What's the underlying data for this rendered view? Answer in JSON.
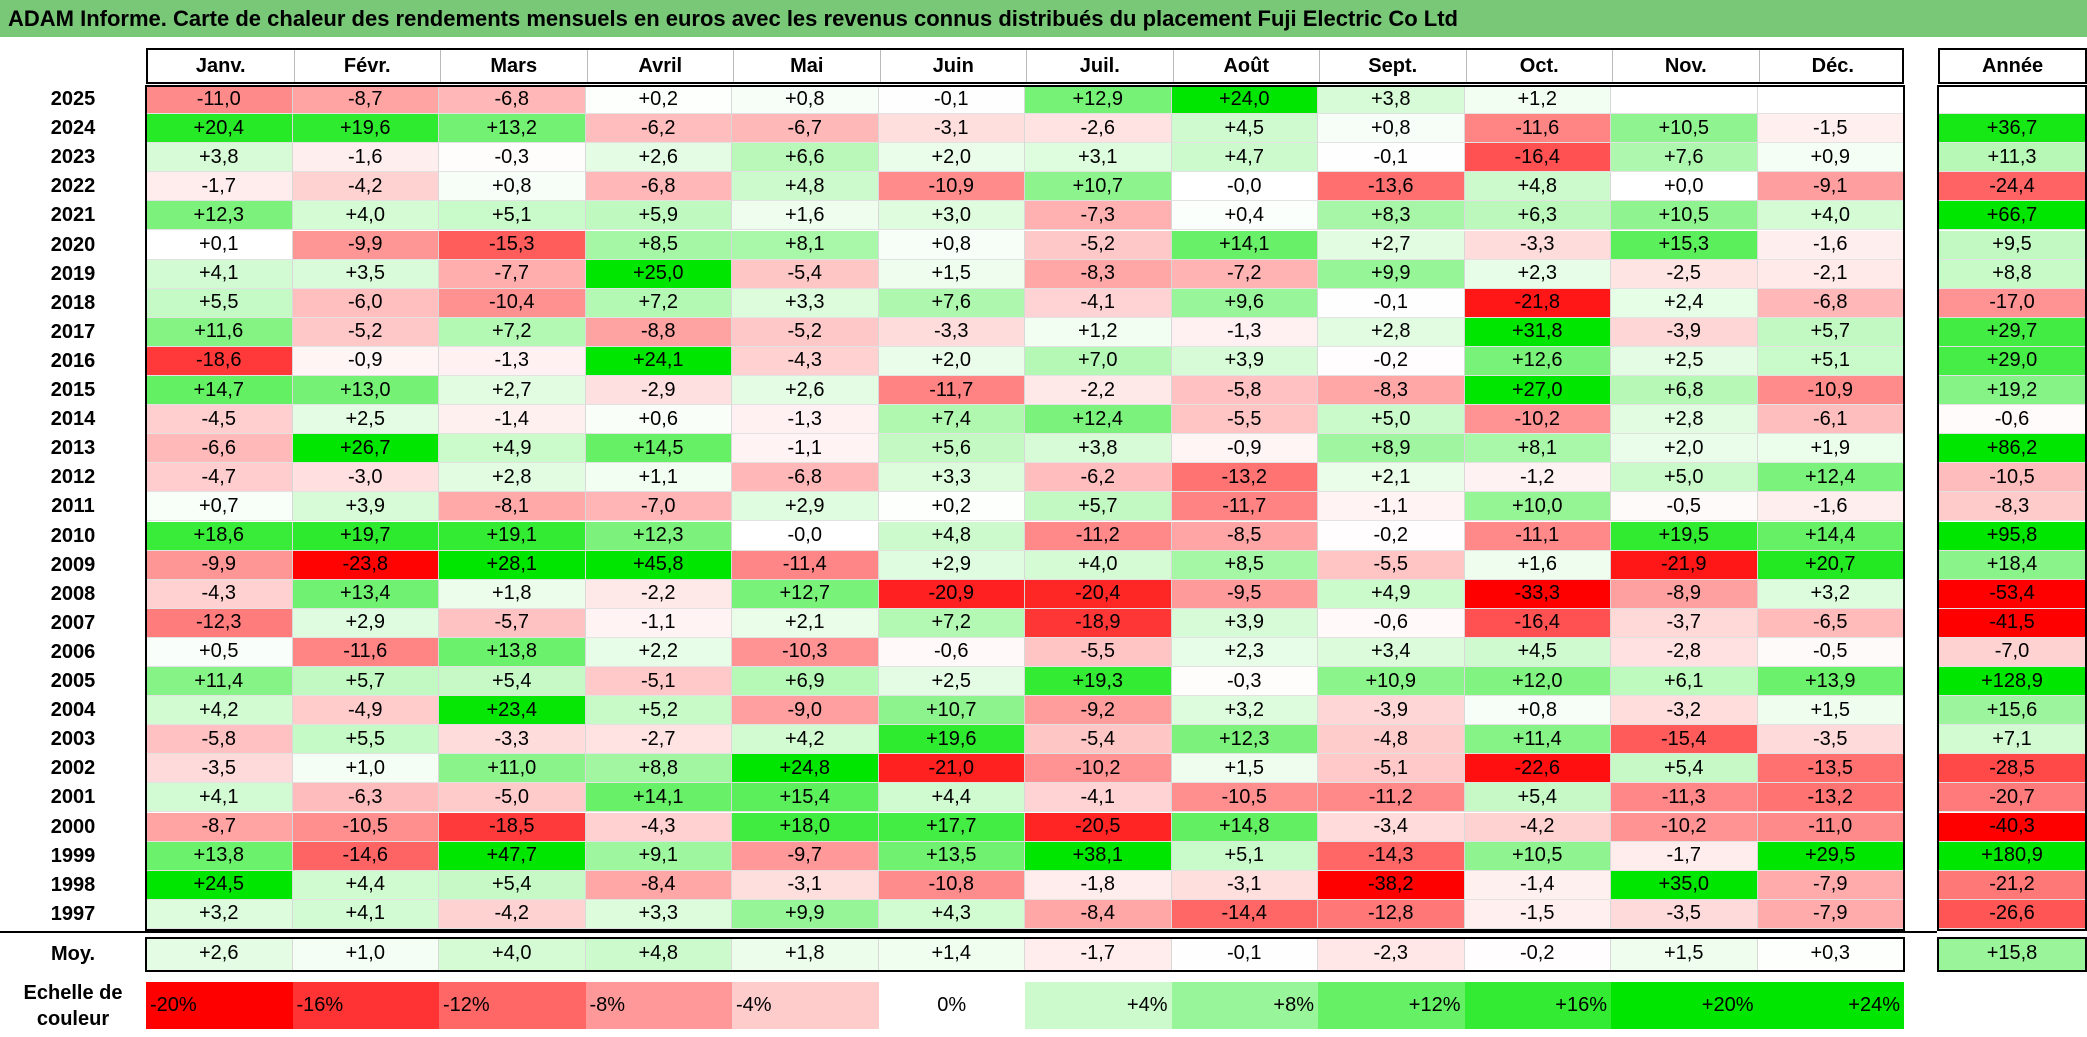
{
  "title": "ADAM Informe. Carte de chaleur des rendements mensuels en euros avec les revenus connus distribués du placement Fuji Electric Co Ltd",
  "chart_data": {
    "type": "heatmap",
    "title": "ADAM Informe. Carte de chaleur des rendements mensuels en euros avec les revenus connus distribués du placement Fuji Electric Co Ltd",
    "columns": [
      "Janv.",
      "Févr.",
      "Mars",
      "Avril",
      "Mai",
      "Juin",
      "Juil.",
      "Août",
      "Sept.",
      "Oct.",
      "Nov.",
      "Déc."
    ],
    "year_header": "Année",
    "rows": [
      {
        "year": "2025",
        "values": [
          "-11,0",
          "-8,7",
          "-6,8",
          "+0,2",
          "+0,8",
          "-0,1",
          "+12,9",
          "+24,0",
          "+3,8",
          "+1,2",
          "",
          ""
        ],
        "annual": ""
      },
      {
        "year": "2024",
        "values": [
          "+20,4",
          "+19,6",
          "+13,2",
          "-6,2",
          "-6,7",
          "-3,1",
          "-2,6",
          "+4,5",
          "+0,8",
          "-11,6",
          "+10,5",
          "-1,5"
        ],
        "annual": "+36,7"
      },
      {
        "year": "2023",
        "values": [
          "+3,8",
          "-1,6",
          "-0,3",
          "+2,6",
          "+6,6",
          "+2,0",
          "+3,1",
          "+4,7",
          "-0,1",
          "-16,4",
          "+7,6",
          "+0,9"
        ],
        "annual": "+11,3"
      },
      {
        "year": "2022",
        "values": [
          "-1,7",
          "-4,2",
          "+0,8",
          "-6,8",
          "+4,8",
          "-10,9",
          "+10,7",
          "-0,0",
          "-13,6",
          "+4,8",
          "+0,0",
          "-9,1"
        ],
        "annual": "-24,4"
      },
      {
        "year": "2021",
        "values": [
          "+12,3",
          "+4,0",
          "+5,1",
          "+5,9",
          "+1,6",
          "+3,0",
          "-7,3",
          "+0,4",
          "+8,3",
          "+6,3",
          "+10,5",
          "+4,0"
        ],
        "annual": "+66,7"
      },
      {
        "year": "2020",
        "values": [
          "+0,1",
          "-9,9",
          "-15,3",
          "+8,5",
          "+8,1",
          "+0,8",
          "-5,2",
          "+14,1",
          "+2,7",
          "-3,3",
          "+15,3",
          "-1,6"
        ],
        "annual": "+9,5"
      },
      {
        "year": "2019",
        "values": [
          "+4,1",
          "+3,5",
          "-7,7",
          "+25,0",
          "-5,4",
          "+1,5",
          "-8,3",
          "-7,2",
          "+9,9",
          "+2,3",
          "-2,5",
          "-2,1"
        ],
        "annual": "+8,8"
      },
      {
        "year": "2018",
        "values": [
          "+5,5",
          "-6,0",
          "-10,4",
          "+7,2",
          "+3,3",
          "+7,6",
          "-4,1",
          "+9,6",
          "-0,1",
          "-21,8",
          "+2,4",
          "-6,8"
        ],
        "annual": "-17,0"
      },
      {
        "year": "2017",
        "values": [
          "+11,6",
          "-5,2",
          "+7,2",
          "-8,8",
          "-5,2",
          "-3,3",
          "+1,2",
          "-1,3",
          "+2,8",
          "+31,8",
          "-3,9",
          "+5,7"
        ],
        "annual": "+29,7"
      },
      {
        "year": "2016",
        "values": [
          "-18,6",
          "-0,9",
          "-1,3",
          "+24,1",
          "-4,3",
          "+2,0",
          "+7,0",
          "+3,9",
          "-0,2",
          "+12,6",
          "+2,5",
          "+5,1"
        ],
        "annual": "+29,0"
      },
      {
        "year": "2015",
        "values": [
          "+14,7",
          "+13,0",
          "+2,7",
          "-2,9",
          "+2,6",
          "-11,7",
          "-2,2",
          "-5,8",
          "-8,3",
          "+27,0",
          "+6,8",
          "-10,9"
        ],
        "annual": "+19,2"
      },
      {
        "year": "2014",
        "values": [
          "-4,5",
          "+2,5",
          "-1,4",
          "+0,6",
          "-1,3",
          "+7,4",
          "+12,4",
          "-5,5",
          "+5,0",
          "-10,2",
          "+2,8",
          "-6,1"
        ],
        "annual": "-0,6"
      },
      {
        "year": "2013",
        "values": [
          "-6,6",
          "+26,7",
          "+4,9",
          "+14,5",
          "-1,1",
          "+5,6",
          "+3,8",
          "-0,9",
          "+8,9",
          "+8,1",
          "+2,0",
          "+1,9"
        ],
        "annual": "+86,2"
      },
      {
        "year": "2012",
        "values": [
          "-4,7",
          "-3,0",
          "+2,8",
          "+1,1",
          "-6,8",
          "+3,3",
          "-6,2",
          "-13,2",
          "+2,1",
          "-1,2",
          "+5,0",
          "+12,4"
        ],
        "annual": "-10,5"
      },
      {
        "year": "2011",
        "values": [
          "+0,7",
          "+3,9",
          "-8,1",
          "-7,0",
          "+2,9",
          "+0,2",
          "+5,7",
          "-11,7",
          "-1,1",
          "+10,0",
          "-0,5",
          "-1,6"
        ],
        "annual": "-8,3"
      },
      {
        "year": "2010",
        "values": [
          "+18,6",
          "+19,7",
          "+19,1",
          "+12,3",
          "-0,0",
          "+4,8",
          "-11,2",
          "-8,5",
          "-0,2",
          "-11,1",
          "+19,5",
          "+14,4"
        ],
        "annual": "+95,8"
      },
      {
        "year": "2009",
        "values": [
          "-9,9",
          "-23,8",
          "+28,1",
          "+45,8",
          "-11,4",
          "+2,9",
          "+4,0",
          "+8,5",
          "-5,5",
          "+1,6",
          "-21,9",
          "+20,7"
        ],
        "annual": "+18,4"
      },
      {
        "year": "2008",
        "values": [
          "-4,3",
          "+13,4",
          "+1,8",
          "-2,2",
          "+12,7",
          "-20,9",
          "-20,4",
          "-9,5",
          "+4,9",
          "-33,3",
          "-8,9",
          "+3,2"
        ],
        "annual": "-53,4"
      },
      {
        "year": "2007",
        "values": [
          "-12,3",
          "+2,9",
          "-5,7",
          "-1,1",
          "+2,1",
          "+7,2",
          "-18,9",
          "+3,9",
          "-0,6",
          "-16,4",
          "-3,7",
          "-6,5"
        ],
        "annual": "-41,5"
      },
      {
        "year": "2006",
        "values": [
          "+0,5",
          "-11,6",
          "+13,8",
          "+2,2",
          "-10,3",
          "-0,6",
          "-5,5",
          "+2,3",
          "+3,4",
          "+4,5",
          "-2,8",
          "-0,5"
        ],
        "annual": "-7,0"
      },
      {
        "year": "2005",
        "values": [
          "+11,4",
          "+5,7",
          "+5,4",
          "-5,1",
          "+6,9",
          "+2,5",
          "+19,3",
          "-0,3",
          "+10,9",
          "+12,0",
          "+6,1",
          "+13,9"
        ],
        "annual": "+128,9"
      },
      {
        "year": "2004",
        "values": [
          "+4,2",
          "-4,9",
          "+23,4",
          "+5,2",
          "-9,0",
          "+10,7",
          "-9,2",
          "+3,2",
          "-3,9",
          "+0,8",
          "-3,2",
          "+1,5"
        ],
        "annual": "+15,6"
      },
      {
        "year": "2003",
        "values": [
          "-5,8",
          "+5,5",
          "-3,3",
          "-2,7",
          "+4,2",
          "+19,6",
          "-5,4",
          "+12,3",
          "-4,8",
          "+11,4",
          "-15,4",
          "-3,5"
        ],
        "annual": "+7,1"
      },
      {
        "year": "2002",
        "values": [
          "-3,5",
          "+1,0",
          "+11,0",
          "+8,8",
          "+24,8",
          "-21,0",
          "-10,2",
          "+1,5",
          "-5,1",
          "-22,6",
          "+5,4",
          "-13,5"
        ],
        "annual": "-28,5"
      },
      {
        "year": "2001",
        "values": [
          "+4,1",
          "-6,3",
          "-5,0",
          "+14,1",
          "+15,4",
          "+4,4",
          "-4,1",
          "-10,5",
          "-11,2",
          "+5,4",
          "-11,3",
          "-13,2"
        ],
        "annual": "-20,7"
      },
      {
        "year": "2000",
        "values": [
          "-8,7",
          "-10,5",
          "-18,5",
          "-4,3",
          "+18,0",
          "+17,7",
          "-20,5",
          "+14,8",
          "-3,4",
          "-4,2",
          "-10,2",
          "-11,0"
        ],
        "annual": "-40,3"
      },
      {
        "year": "1999",
        "values": [
          "+13,8",
          "-14,6",
          "+47,7",
          "+9,1",
          "-9,7",
          "+13,5",
          "+38,1",
          "+5,1",
          "-14,3",
          "+10,5",
          "-1,7",
          "+29,5"
        ],
        "annual": "+180,9"
      },
      {
        "year": "1998",
        "values": [
          "+24,5",
          "+4,4",
          "+5,4",
          "-8,4",
          "-3,1",
          "-10,8",
          "-1,8",
          "-3,1",
          "-38,2",
          "-1,4",
          "+35,0",
          "-7,9"
        ],
        "annual": "-21,2"
      },
      {
        "year": "1997",
        "values": [
          "+3,2",
          "+4,1",
          "-4,2",
          "+3,3",
          "+9,9",
          "+4,3",
          "-8,4",
          "-14,4",
          "-12,8",
          "-1,5",
          "-3,5",
          "-7,9"
        ],
        "annual": "-26,6"
      }
    ],
    "average": {
      "label": "Moy.",
      "values": [
        "+2,6",
        "+1,0",
        "+4,0",
        "+4,8",
        "+1,8",
        "+1,4",
        "-1,7",
        "-0,1",
        "-2,3",
        "-0,2",
        "+1,5",
        "+0,3"
      ],
      "annual": "+15,8"
    },
    "scale": {
      "label_line1": "Echelle de",
      "label_line2": "couleur",
      "items": [
        {
          "label": "-20%",
          "value": -20
        },
        {
          "label": "-16%",
          "value": -16
        },
        {
          "label": "-12%",
          "value": -12
        },
        {
          "label": "-8%",
          "value": -8
        },
        {
          "label": "-4%",
          "value": -4
        },
        {
          "label": "0%",
          "value": 0
        },
        {
          "label": "+4%",
          "value": 4
        },
        {
          "label": "+8%",
          "value": 8
        },
        {
          "label": "+12%",
          "value": 12
        },
        {
          "label": "+16%",
          "value": 16
        },
        {
          "label": "+20%",
          "value": 20
        },
        {
          "label": "+24%",
          "value": 24
        }
      ]
    }
  }
}
